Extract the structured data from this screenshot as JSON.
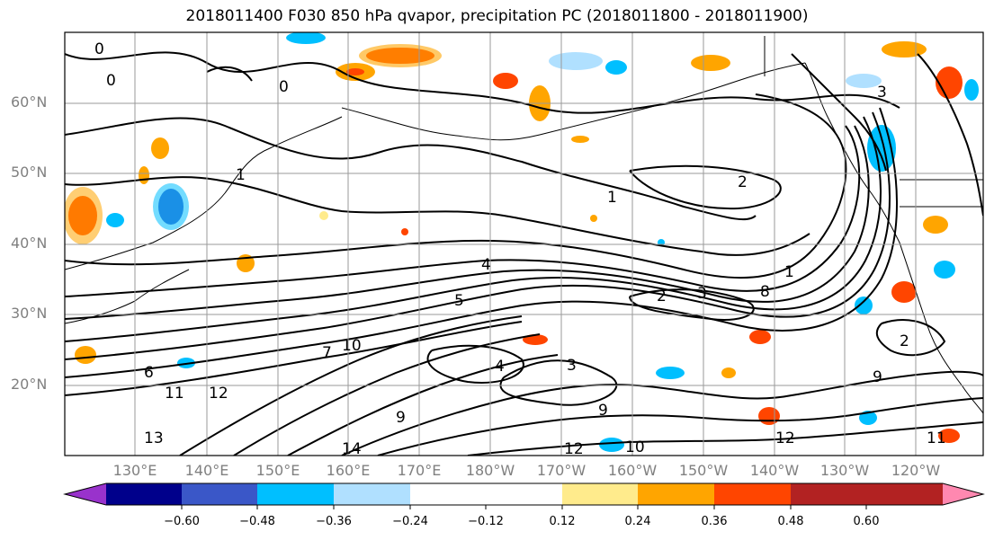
{
  "title": "2018011400 F030 850 hPa qvapor, precipitation PC (2018011800 - 2018011900)",
  "lat_labels": [
    "60°N",
    "50°N",
    "40°N",
    "30°N",
    "20°N"
  ],
  "lon_labels": [
    "130°E",
    "140°E",
    "150°E",
    "160°E",
    "170°E",
    "180°W",
    "170°W",
    "160°W",
    "150°W",
    "140°W",
    "130°W",
    "120°W"
  ],
  "colorbar": {
    "tick_labels": [
      "−0.60",
      "−0.48",
      "−0.36",
      "−0.24",
      "−0.12",
      "0.12",
      "0.24",
      "0.36",
      "0.48",
      "0.60"
    ],
    "colors": [
      "#9932cc",
      "#00008b",
      "#3a57c8",
      "#00bfff",
      "#b0e0ff",
      "#ffffff",
      "#ffeb8c",
      "#ffa500",
      "#ff4500",
      "#b22222",
      "#ff88b0"
    ]
  },
  "contour_labels": [
    "0",
    "0",
    "0",
    "1",
    "1",
    "1",
    "2",
    "2",
    "2",
    "3",
    "3",
    "3",
    "4",
    "4",
    "5",
    "6",
    "7",
    "8",
    "9",
    "10",
    "11",
    "12",
    "12",
    "13",
    "14",
    "9",
    "11",
    "12",
    "10",
    "9"
  ]
}
